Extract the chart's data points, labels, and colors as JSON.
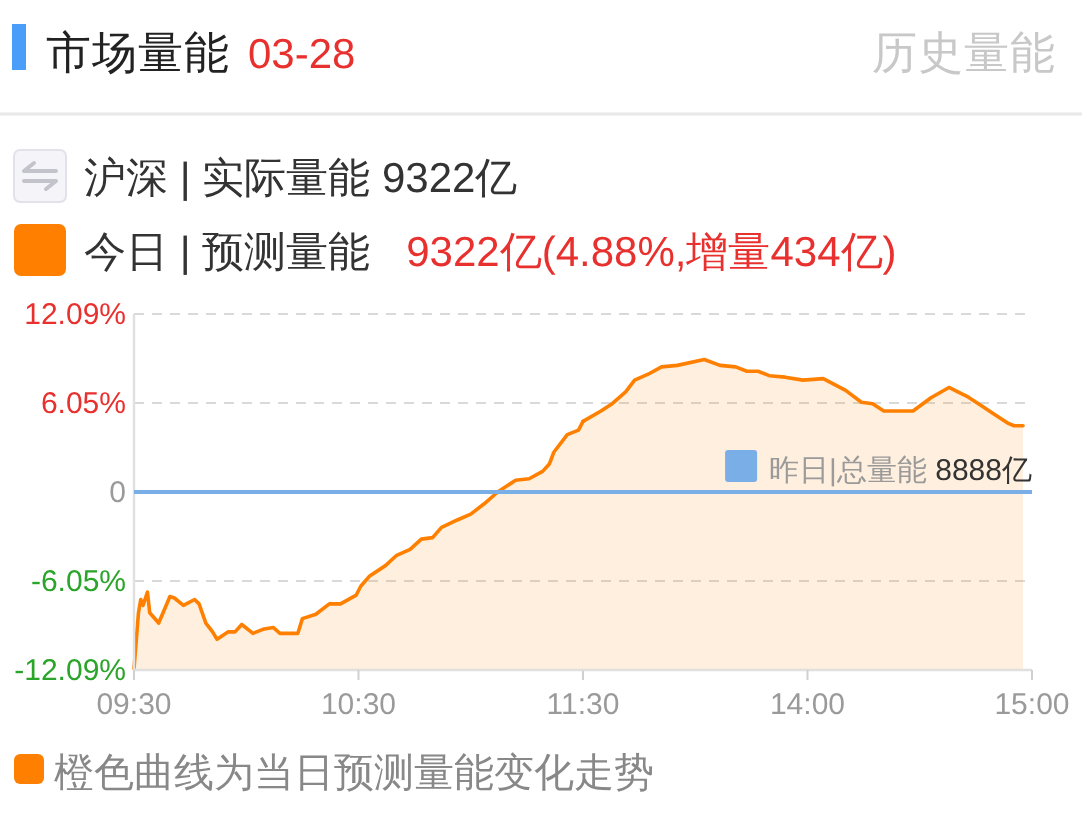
{
  "chart_data": [
    {
      "type": "line",
      "title": "市场量能",
      "subtitle": "03-28",
      "annotations": [
        "历史量能",
        "沪深 | 实际量能 9322亿",
        "9322亿(4.88%,增量434亿)",
        "橙色曲线为当日预测量能变化走势"
      ],
      "series": [
        {
          "name": "今日 | 预测量能",
          "color": "#ff8000",
          "x": [
            9.5,
            9.52,
            9.53,
            9.54,
            9.56,
            9.57,
            9.61,
            9.66,
            9.68,
            9.72,
            9.77,
            9.79,
            9.82,
            9.85,
            9.87,
            9.92,
            9.95,
            9.98,
            10.03,
            10.08,
            10.12,
            10.15,
            10.19,
            10.23,
            10.25,
            10.31,
            10.37,
            10.42,
            10.49,
            10.51,
            10.55,
            10.62,
            10.67,
            10.73,
            10.78,
            10.83,
            10.87,
            10.94,
            11.0,
            11.06,
            11.12,
            11.2,
            11.26,
            11.32,
            11.35,
            11.37,
            11.43,
            11.48,
            11.5
          ],
          "values": [
            -12.0,
            -8.2,
            -7.3,
            -7.7,
            -6.8,
            -8.2,
            -8.9,
            -7.1,
            -7.2,
            -7.7,
            -7.3,
            -7.6,
            -8.9,
            -9.5,
            -10.0,
            -9.5,
            -9.5,
            -9.0,
            -9.6,
            -9.3,
            -9.2,
            -9.6,
            -9.6,
            -9.6,
            -8.6,
            -8.3,
            -7.6,
            -7.6,
            -7.0,
            -6.4,
            -5.7,
            -5.0,
            -4.3,
            -3.9,
            -3.2,
            -3.1,
            -2.4,
            -1.9,
            -1.5,
            -0.8,
            0,
            0.8,
            0.9,
            1.4,
            1.9,
            2.7,
            3.9,
            4.2,
            4.8
          ],
          "lower": [
            -12.09,
            -12.09,
            -12.09,
            -12.09,
            -12.09,
            -12.09,
            -12.09,
            -12.09,
            -12.09,
            -12.09,
            -12.09,
            -12.09,
            -12.09,
            -12.09,
            -12.09,
            -12.09,
            -12.09,
            -12.09,
            -12.09,
            -12.09,
            -12.09,
            -12.09,
            -12.09,
            -12.09,
            -12.09,
            -12.09,
            -12.09,
            -12.09,
            -12.09,
            -12.09,
            -12.09,
            -12.09,
            -12.09,
            -12.09,
            -12.09,
            -12.09,
            -12.09,
            -12.09,
            -12.09,
            -12.09,
            -12.09,
            -12.09,
            -12.09,
            -12.09,
            -12.09,
            -12.09,
            -12.09,
            -12.09,
            -12.09
          ],
          "upper": [
            -12.0,
            -8.2,
            -7.3,
            -7.7,
            -6.8,
            -8.2,
            -8.9,
            -7.1,
            -7.2,
            -7.7,
            -7.3,
            -7.6,
            -8.9,
            -9.5,
            -10.0,
            -9.5,
            -9.5,
            -9.0,
            -9.6,
            -9.3,
            -9.2,
            -9.6,
            -9.6,
            -9.6,
            -8.6,
            -8.3,
            -7.6,
            -7.6,
            -7.0,
            -6.4,
            -5.7,
            -5.0,
            -4.3,
            -3.9,
            -3.2,
            -3.1,
            -2.4,
            -1.9,
            -1.5,
            -0.8,
            0,
            0.8,
            0.9,
            1.4,
            1.9,
            2.7,
            3.9,
            4.2,
            4.8
          ]
        }
      ],
      "xlim": [
        9.5,
        11.5
      ],
      "xticks": [
        {
          "value": 9.5,
          "label": "09:30"
        },
        {
          "value": 10.5,
          "label": "10:30"
        },
        {
          "value": 11.5,
          "label": "11:30"
        }
      ],
      "ylim": [
        -12.09,
        12.09
      ],
      "yticks": [
        {
          "value": -12.09,
          "label": "-12.09%"
        },
        {
          "value": -6.05,
          "label": "-6.05%"
        },
        0,
        {
          "value": 6.05,
          "label": "6.05%"
        },
        {
          "value": 12.09,
          "label": "12.09%"
        }
      ],
      "ref_lines": [
        {
          "axis": "y",
          "value": 0,
          "color": "#7aaee6"
        }
      ],
      "grid": "y",
      "legend": "top left"
    },
    {
      "type": "line",
      "series": [
        {
          "color": "#ff8000",
          "x": [
            13.0,
            13.08,
            13.13,
            13.19,
            13.23,
            13.29,
            13.35,
            13.42,
            13.54,
            13.61,
            13.68,
            13.73,
            13.78,
            13.83,
            13.9,
            13.98,
            14.07,
            14.17,
            14.24,
            14.29,
            14.34,
            14.47,
            14.55,
            14.63,
            14.71,
            14.78,
            14.83,
            14.89,
            14.92,
            14.96
          ],
          "values": [
            4.8,
            5.5,
            6.0,
            6.8,
            7.6,
            8.0,
            8.5,
            8.6,
            9.0,
            8.6,
            8.5,
            8.2,
            8.2,
            7.9,
            7.8,
            7.6,
            7.7,
            6.9,
            6.1,
            6.0,
            5.5,
            5.5,
            6.4,
            7.1,
            6.5,
            5.8,
            5.3,
            4.7,
            4.5,
            4.5
          ],
          "lower": [
            -12.09,
            -12.09,
            -12.09,
            -12.09,
            -12.09,
            -12.09,
            -12.09,
            -12.09,
            -12.09,
            -12.09,
            -12.09,
            -12.09,
            -12.09,
            -12.09,
            -12.09,
            -12.09,
            -12.09,
            -12.09,
            -12.09,
            -12.09,
            -12.09,
            -12.09,
            -12.09,
            -12.09,
            -12.09,
            -12.09,
            -12.09,
            -12.09,
            -12.09,
            -12.09
          ],
          "upper": [
            4.8,
            5.5,
            6.0,
            6.8,
            7.6,
            8.0,
            8.5,
            8.6,
            9.0,
            8.6,
            8.5,
            8.2,
            8.2,
            7.9,
            7.8,
            7.6,
            7.7,
            6.9,
            6.1,
            6.0,
            5.5,
            5.5,
            6.4,
            7.1,
            6.5,
            5.8,
            5.3,
            4.7,
            4.5,
            4.5
          ]
        }
      ],
      "xlim": [
        13,
        15
      ],
      "xticks": [
        {
          "value": 14,
          "label": "14:00"
        },
        {
          "value": 15,
          "label": "15:00"
        }
      ],
      "ylim": [
        -12.09,
        12.09
      ],
      "yticks": [
        -12.09,
        -6.05,
        0,
        6.05,
        12.09
      ],
      "ref_lines": [
        {
          "axis": "y",
          "value": 0,
          "label": "昨日|总量能 8888亿",
          "color": "#7aaee6"
        }
      ],
      "grid": "y",
      "tick_labels": "x"
    }
  ]
}
